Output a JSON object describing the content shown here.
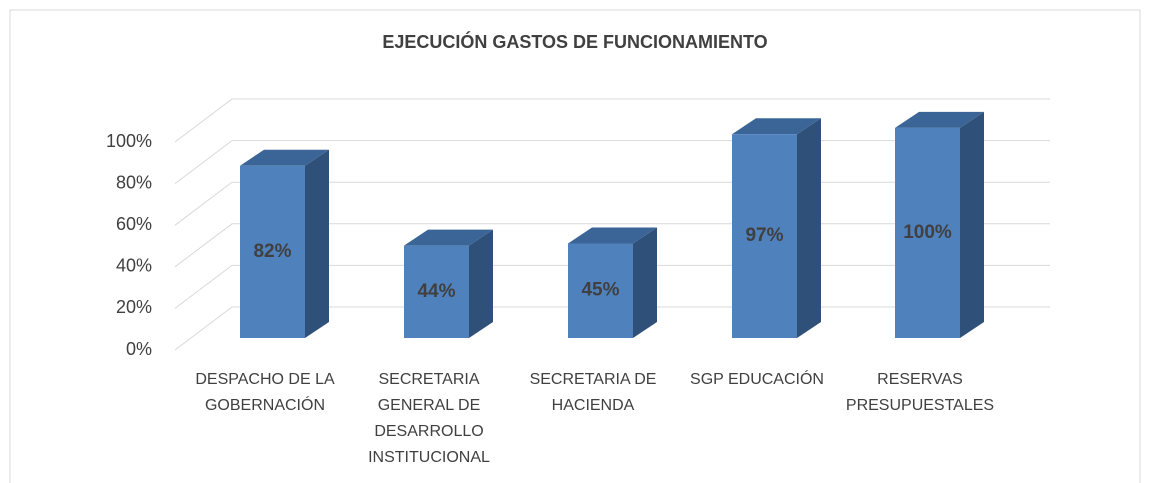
{
  "chart_data": {
    "type": "bar3d",
    "title": "EJECUCIÓN GASTOS DE FUNCIONAMIENTO",
    "categories": [
      "DESPACHO DE LA GOBERNACIÓN",
      "SECRETARIA GENERAL DE DESARROLLO INSTITUCIONAL",
      "SECRETARIA DE HACIENDA",
      "SGP EDUCACIÓN",
      "RESERVAS PRESUPUESTALES"
    ],
    "values": [
      82,
      44,
      45,
      97,
      100
    ],
    "value_labels": [
      "82%",
      "44%",
      "45%",
      "97%",
      "100%"
    ],
    "color": "#4f81bd",
    "ylim": [
      0,
      100
    ],
    "yticks": [
      {
        "value": 0,
        "label": "0%"
      },
      {
        "value": 20,
        "label": "20%"
      },
      {
        "value": 40,
        "label": "40%"
      },
      {
        "value": 60,
        "label": "60%"
      },
      {
        "value": 80,
        "label": "80%"
      },
      {
        "value": 100,
        "label": "100%"
      }
    ],
    "grid": true
  }
}
